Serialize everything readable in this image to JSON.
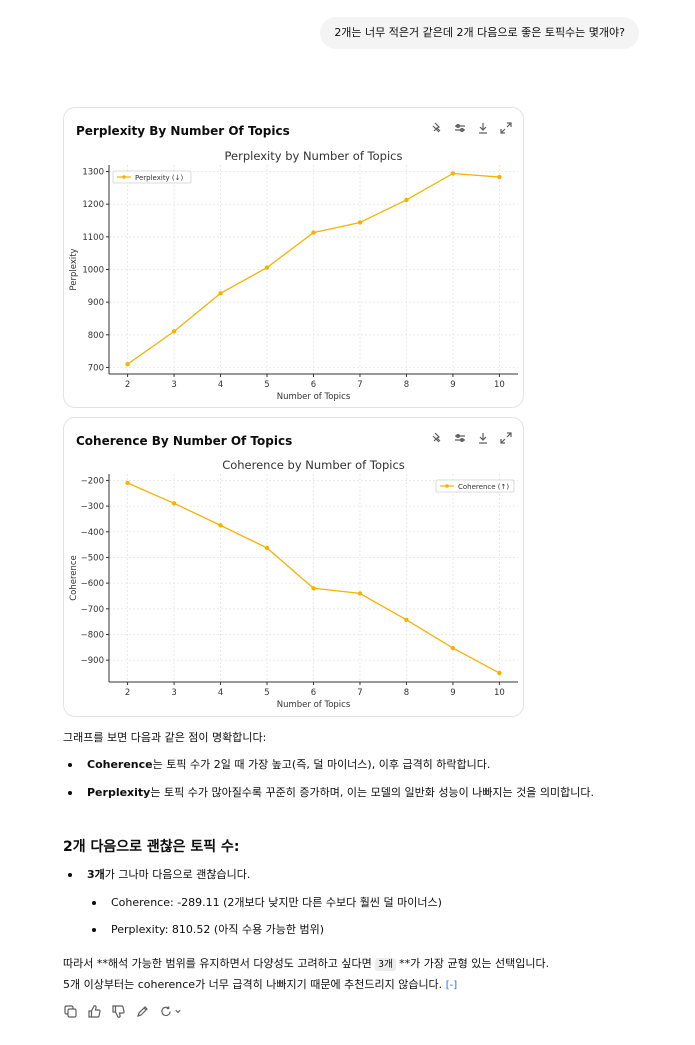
{
  "user_message": "2개는 너무 적은거 같은데 2개 다음으로 좋은 토픽수는 몇개야?",
  "cards": [
    {
      "card_title": "Perplexity By Number Of Topics",
      "tool_icons": [
        "pin-icon",
        "sliders-icon",
        "download-icon",
        "expand-icon"
      ]
    },
    {
      "card_title": "Coherence By Number Of Topics",
      "tool_icons": [
        "pin-icon",
        "sliders-icon",
        "download-icon",
        "expand-icon"
      ]
    }
  ],
  "chart_data": [
    {
      "type": "line",
      "title": "Perplexity by Number of Topics",
      "xlabel": "Number of Topics",
      "ylabel": "Perplexity",
      "x": [
        2,
        3,
        4,
        5,
        6,
        7,
        8,
        9,
        10
      ],
      "series": [
        {
          "name": "Perplexity (↓)",
          "values": [
            710,
            810.52,
            927,
            1006,
            1113,
            1144,
            1213,
            1294,
            1283
          ]
        }
      ],
      "xlim": [
        1.6,
        10.4
      ],
      "ylim": [
        680,
        1320
      ],
      "yticks": [
        700,
        800,
        900,
        1000,
        1100,
        1200,
        1300
      ],
      "grid": true,
      "legend": "top-left",
      "color": "#f5b300"
    },
    {
      "type": "line",
      "title": "Coherence by Number of Topics",
      "xlabel": "Number of Topics",
      "ylabel": "Coherence",
      "x": [
        2,
        3,
        4,
        5,
        6,
        7,
        8,
        9,
        10
      ],
      "series": [
        {
          "name": "Coherence (↑)",
          "values": [
            -210,
            -289.11,
            -375,
            -463,
            -620,
            -640,
            -743,
            -853,
            -950
          ]
        }
      ],
      "xlim": [
        1.6,
        10.4
      ],
      "ylim": [
        -985,
        -175
      ],
      "yticks": [
        -200,
        -300,
        -400,
        -500,
        -600,
        -700,
        -800,
        -900
      ],
      "grid": true,
      "legend": "top-right",
      "color": "#f5b300"
    }
  ],
  "answer": {
    "intro": "그래프를 보면 다음과 같은 점이 명확합니다:",
    "points": [
      {
        "bold": "Coherence",
        "text": "는 토픽 수가 2일 때 가장 높고(즉, 덜 마이너스), 이후 급격히 하락합니다."
      },
      {
        "bold": "Perplexity",
        "text": "는 토픽 수가 많아질수록 꾸준히 증가하며, 이는 모델의 일반화 성능이 나빠지는 것을 의미합니다."
      }
    ],
    "heading": "2개 다음으로 괜찮은 토픽 수:",
    "rec_bold": "3개",
    "rec_text": "가 그나마 다음으로 괜찮습니다.",
    "details": [
      "Coherence: -289.11 (2개보다 낮지만 다른 수보다 훨씬 덜 마이너스)",
      "Perplexity: 810.52 (아직 수용 가능한 범위)"
    ],
    "conclusion_a": "따라서 **해석 가능한 범위를 유지하면서 다양성도 고려하고 싶다면 ",
    "conclusion_code": "3개",
    "conclusion_b": " **가 가장 균형 있는 선택입니다.",
    "conclusion_c": "5개 이상부터는 coherence가 너무 급격히 나빠지기 때문에 추천드리지 않습니다. ",
    "cite": "[-]"
  },
  "action_icons": [
    "copy-icon",
    "thumbs-up-icon",
    "thumbs-down-icon",
    "edit-icon",
    "regenerate-icon"
  ]
}
